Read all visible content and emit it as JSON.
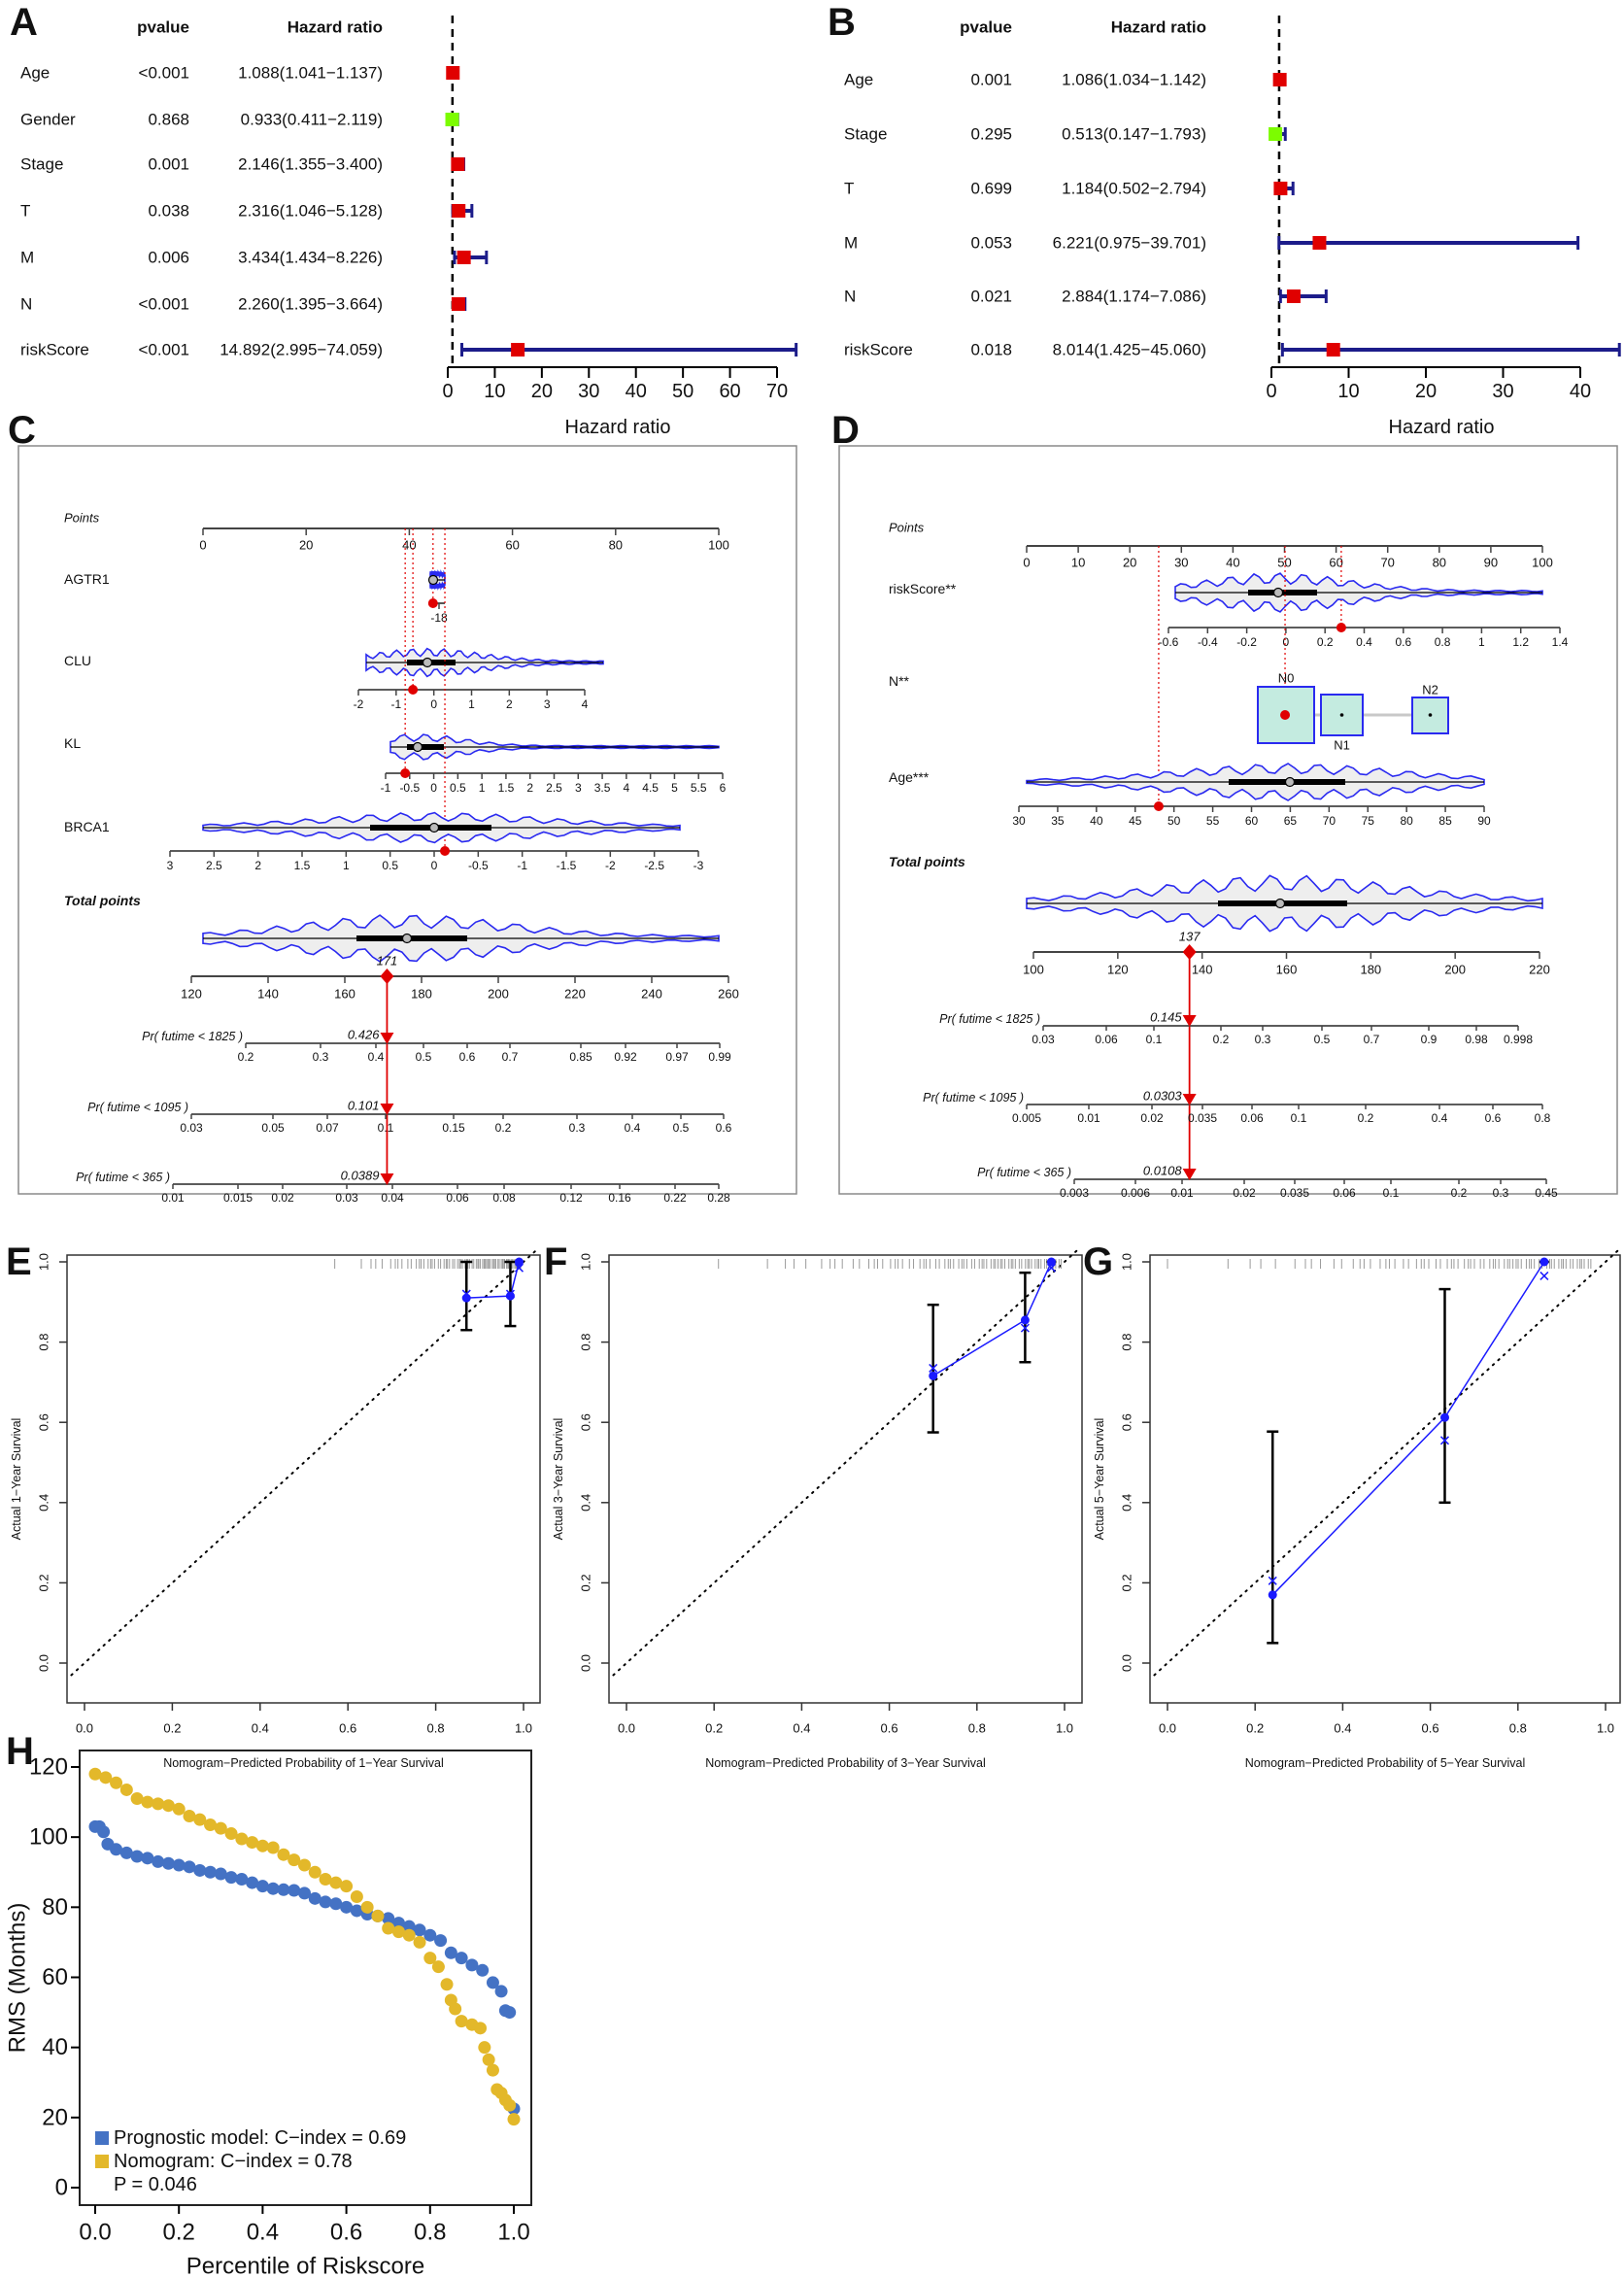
{
  "panels": [
    "A",
    "B",
    "C",
    "D",
    "E",
    "F",
    "G",
    "H"
  ],
  "chart_data": [
    {
      "type": "forest",
      "panel": "A",
      "headers": {
        "pvalue": "pvalue",
        "hazard_ratio": "Hazard ratio"
      },
      "xlabel": "Hazard ratio",
      "xticks": [
        0,
        10,
        20,
        30,
        40,
        50,
        60,
        70
      ],
      "xlim": [
        0,
        74
      ],
      "reference_line": 1,
      "rows": [
        {
          "label": "Age",
          "pvalue": "<0.001",
          "hr_text": "1.088(1.041−1.137)",
          "hr": 1.088,
          "lower": 1.041,
          "upper": 1.137,
          "color": "#e00000"
        },
        {
          "label": "Gender",
          "pvalue": "0.868",
          "hr_text": "0.933(0.411−2.119)",
          "hr": 0.933,
          "lower": 0.411,
          "upper": 2.119,
          "color": "#7cfc00"
        },
        {
          "label": "Stage",
          "pvalue": "0.001",
          "hr_text": "2.146(1.355−3.400)",
          "hr": 2.146,
          "lower": 1.355,
          "upper": 3.4,
          "color": "#e00000"
        },
        {
          "label": "T",
          "pvalue": "0.038",
          "hr_text": "2.316(1.046−5.128)",
          "hr": 2.316,
          "lower": 1.046,
          "upper": 5.128,
          "color": "#e00000"
        },
        {
          "label": "M",
          "pvalue": "0.006",
          "hr_text": "3.434(1.434−8.226)",
          "hr": 3.434,
          "lower": 1.434,
          "upper": 8.226,
          "color": "#e00000"
        },
        {
          "label": "N",
          "pvalue": "<0.001",
          "hr_text": "2.260(1.395−3.664)",
          "hr": 2.26,
          "lower": 1.395,
          "upper": 3.664,
          "color": "#e00000"
        },
        {
          "label": "riskScore",
          "pvalue": "<0.001",
          "hr_text": "14.892(2.995−74.059)",
          "hr": 14.892,
          "lower": 2.995,
          "upper": 74.059,
          "color": "#e00000"
        }
      ]
    },
    {
      "type": "forest",
      "panel": "B",
      "headers": {
        "pvalue": "pvalue",
        "hazard_ratio": "Hazard ratio"
      },
      "xlabel": "Hazard ratio",
      "xticks": [
        0,
        10,
        20,
        30,
        40
      ],
      "xlim": [
        0,
        45
      ],
      "reference_line": 1,
      "rows": [
        {
          "label": "Age",
          "pvalue": "0.001",
          "hr_text": "1.086(1.034−1.142)",
          "hr": 1.086,
          "lower": 1.034,
          "upper": 1.142,
          "color": "#e00000"
        },
        {
          "label": "Stage",
          "pvalue": "0.295",
          "hr_text": "0.513(0.147−1.793)",
          "hr": 0.513,
          "lower": 0.147,
          "upper": 1.793,
          "color": "#7cfc00"
        },
        {
          "label": "T",
          "pvalue": "0.699",
          "hr_text": "1.184(0.502−2.794)",
          "hr": 1.184,
          "lower": 0.502,
          "upper": 2.794,
          "color": "#e00000"
        },
        {
          "label": "M",
          "pvalue": "0.053",
          "hr_text": "6.221(0.975−39.701)",
          "hr": 6.221,
          "lower": 0.975,
          "upper": 39.701,
          "color": "#e00000"
        },
        {
          "label": "N",
          "pvalue": "0.021",
          "hr_text": "2.884(1.174−7.086)",
          "hr": 2.884,
          "lower": 1.174,
          "upper": 7.086,
          "color": "#e00000"
        },
        {
          "label": "riskScore",
          "pvalue": "0.018",
          "hr_text": "8.014(1.425−45.060)",
          "hr": 8.014,
          "lower": 1.425,
          "upper": 45.06,
          "color": "#e00000"
        }
      ]
    },
    {
      "type": "nomogram",
      "panel": "C",
      "points": {
        "label": "Points",
        "ticks": [
          0,
          20,
          40,
          60,
          80,
          100
        ]
      },
      "variables": [
        {
          "label": "AGTR1",
          "ticks": [
            "-18"
          ],
          "points": 44.6
        },
        {
          "label": "CLU",
          "ticks": [
            "-2",
            "-1",
            "0",
            "1",
            "2",
            "3",
            "4"
          ],
          "points": 40.7
        },
        {
          "label": "KL",
          "ticks": [
            "-1",
            "-0.5",
            "0",
            "0.5",
            "1",
            "1.5",
            "2",
            "2.5",
            "3",
            "3.5",
            "4",
            "4.5",
            "5",
            "5.5",
            "6"
          ],
          "points": 39.2
        },
        {
          "label": "BRCA1",
          "ticks": [
            "3",
            "2.5",
            "2",
            "1.5",
            "1",
            "0.5",
            "0",
            "-0.5",
            "-1",
            "-1.5",
            "-2",
            "-2.5",
            "-3"
          ],
          "points": 46.9
        }
      ],
      "total_points": {
        "label": "Total points",
        "ticks": [
          120,
          140,
          160,
          180,
          200,
          220,
          240,
          260
        ],
        "value": 171,
        "value_label": "171"
      },
      "probabilities": [
        {
          "label": "Pr( futime < 1825 )",
          "ticks": [
            "0.2",
            "0.3",
            "0.4",
            "0.5",
            "0.6",
            "0.7",
            "0.85",
            "0.92",
            "0.97",
            "0.99"
          ],
          "value": "0.426"
        },
        {
          "label": "Pr( futime < 1095 )",
          "ticks": [
            "0.03",
            "0.05",
            "0.07",
            "0.1",
            "0.15",
            "0.2",
            "0.3",
            "0.4",
            "0.5",
            "0.6"
          ],
          "value": "0.101"
        },
        {
          "label": "Pr( futime < 365 )",
          "ticks": [
            "0.01",
            "0.015",
            "0.02",
            "0.03",
            "0.04",
            "0.06",
            "0.08",
            "0.12",
            "0.16",
            "0.22",
            "0.28"
          ],
          "value": "0.0389"
        }
      ],
      "colors": {
        "highlight": "#e00000",
        "violin_outline": "#2a2af0"
      }
    },
    {
      "type": "nomogram",
      "panel": "D",
      "points": {
        "label": "Points",
        "ticks": [
          0,
          10,
          20,
          30,
          40,
          50,
          60,
          70,
          80,
          90,
          100
        ]
      },
      "variables": [
        {
          "label": "riskScore**",
          "ticks": [
            "-0.6",
            "-0.4",
            "-0.2",
            "0",
            "0.2",
            "0.4",
            "0.6",
            "0.8",
            "1",
            "1.2",
            "1.4"
          ],
          "points": 61
        },
        {
          "label": "N**",
          "categories": [
            "N0",
            "N1",
            "N2"
          ],
          "selected": "N0",
          "points": 50.1
        },
        {
          "label": "Age***",
          "ticks": [
            "30",
            "35",
            "40",
            "45",
            "50",
            "55",
            "60",
            "65",
            "70",
            "75",
            "80",
            "85",
            "90"
          ],
          "points": 25.6
        }
      ],
      "total_points": {
        "label": "Total points",
        "ticks": [
          100,
          120,
          140,
          160,
          180,
          200,
          220
        ],
        "value": 137,
        "value_label": "137"
      },
      "probabilities": [
        {
          "label": "Pr( futime < 1825 )",
          "ticks": [
            "0.03",
            "0.06",
            "0.1",
            "0.2",
            "0.3",
            "0.5",
            "0.7",
            "0.9",
            "0.98",
            "0.998"
          ],
          "value": "0.145"
        },
        {
          "label": "Pr( futime < 1095 )",
          "ticks": [
            "0.005",
            "0.01",
            "0.02",
            "0.035",
            "0.06",
            "0.1",
            "0.2",
            "0.4",
            "0.6",
            "0.8"
          ],
          "value": "0.0303"
        },
        {
          "label": "Pr( futime < 365 )",
          "ticks": [
            "0.003",
            "0.006",
            "0.01",
            "0.02",
            "0.035",
            "0.06",
            "0.1",
            "0.2",
            "0.3",
            "0.45"
          ],
          "value": "0.0108"
        }
      ],
      "colors": {
        "highlight": "#e00000",
        "violin_outline": "#2a2af0",
        "category_fill": "#c4ebe0"
      }
    },
    {
      "type": "scatter",
      "panel": "E",
      "xlabel": "Nomogram−Predicted Probability of 1−Year Survival",
      "ylabel": "Actual 1−Year Survival",
      "xticks": [
        "0.0",
        "0.2",
        "0.4",
        "0.6",
        "0.8",
        "1.0"
      ],
      "yticks": [
        "0.0",
        "0.2",
        "0.4",
        "0.6",
        "0.8",
        "1.0"
      ],
      "xlim": [
        0,
        1
      ],
      "ylim": [
        0,
        1
      ],
      "reference": "diagonal",
      "rug_range": [
        0.57,
        0.995
      ],
      "points": [
        {
          "predicted": 0.87,
          "observed": 0.91,
          "lower": 0.83,
          "upper": 1.0,
          "corrected": 0.92
        },
        {
          "predicted": 0.97,
          "observed": 0.915,
          "lower": 0.84,
          "upper": 1.0,
          "corrected": 0.92
        },
        {
          "predicted": 0.99,
          "observed": 1.0,
          "lower": 1.0,
          "upper": 1.0,
          "corrected": 0.985
        }
      ]
    },
    {
      "type": "scatter",
      "panel": "F",
      "xlabel": "Nomogram−Predicted Probability of 3−Year Survival",
      "ylabel": "Actual 3−Year Survival",
      "xticks": [
        "0.0",
        "0.2",
        "0.4",
        "0.6",
        "0.8",
        "1.0"
      ],
      "yticks": [
        "0.0",
        "0.2",
        "0.4",
        "0.6",
        "0.8",
        "1.0"
      ],
      "xlim": [
        0,
        1
      ],
      "ylim": [
        0,
        1
      ],
      "reference": "diagonal",
      "rug_range": [
        0.21,
        0.995
      ],
      "points": [
        {
          "predicted": 0.7,
          "observed": 0.716,
          "lower": 0.575,
          "upper": 0.893,
          "corrected": 0.735
        },
        {
          "predicted": 0.91,
          "observed": 0.855,
          "lower": 0.75,
          "upper": 0.973,
          "corrected": 0.835
        },
        {
          "predicted": 0.97,
          "observed": 1.0,
          "lower": 1.0,
          "upper": 1.0,
          "corrected": 0.985
        }
      ]
    },
    {
      "type": "scatter",
      "panel": "G",
      "xlabel": "Nomogram−Predicted Probability of 5−Year Survival",
      "ylabel": "Actual 5−Year Survival",
      "xticks": [
        "0.0",
        "0.2",
        "0.4",
        "0.6",
        "0.8",
        "1.0"
      ],
      "yticks": [
        "0.0",
        "0.2",
        "0.4",
        "0.6",
        "0.8",
        "1.0"
      ],
      "xlim": [
        0,
        1
      ],
      "ylim": [
        0,
        1
      ],
      "reference": "diagonal",
      "rug_range": [
        0.0,
        0.97
      ],
      "points": [
        {
          "predicted": 0.24,
          "observed": 0.17,
          "lower": 0.05,
          "upper": 0.577,
          "corrected": 0.205
        },
        {
          "predicted": 0.633,
          "observed": 0.612,
          "lower": 0.4,
          "upper": 0.932,
          "corrected": 0.555
        },
        {
          "predicted": 0.86,
          "observed": 1.0,
          "lower": 1.0,
          "upper": 1.0,
          "corrected": 0.965
        }
      ]
    },
    {
      "type": "scatter",
      "panel": "H",
      "xlabel": "Percentile of Riskscore",
      "ylabel": "RMS (Months)",
      "xticks": [
        "0.0",
        "0.2",
        "0.4",
        "0.6",
        "0.8",
        "1.0"
      ],
      "yticks": [
        0,
        20,
        40,
        60,
        80,
        100,
        120
      ],
      "xlim": [
        0,
        1
      ],
      "ylim": [
        0,
        120
      ],
      "legend": "bottom-left",
      "legend_note": "P = 0.046",
      "series": [
        {
          "name": "Prognostic model: C−index = 0.69",
          "color": "#4472c4",
          "x": [
            0,
            0.01,
            0.02,
            0.03,
            0.05,
            0.075,
            0.1,
            0.125,
            0.15,
            0.175,
            0.2,
            0.225,
            0.25,
            0.275,
            0.3,
            0.325,
            0.35,
            0.375,
            0.4,
            0.425,
            0.45,
            0.475,
            0.5,
            0.525,
            0.55,
            0.575,
            0.6,
            0.625,
            0.65,
            0.675,
            0.7,
            0.725,
            0.75,
            0.775,
            0.8,
            0.825,
            0.85,
            0.875,
            0.9,
            0.925,
            0.95,
            0.97,
            0.98,
            0.99,
            1.0
          ],
          "y": [
            103,
            103,
            101.5,
            98,
            96.5,
            95.5,
            94.5,
            94,
            93,
            92.5,
            92,
            91.5,
            90.5,
            90,
            89.5,
            88.5,
            88,
            87,
            86,
            85.3,
            85,
            84.8,
            84,
            82.5,
            81.5,
            81,
            80,
            79,
            78,
            77.5,
            76.8,
            75.5,
            74.5,
            73.5,
            72,
            70.5,
            67,
            65.5,
            63.5,
            62,
            58.5,
            56,
            50.5,
            50,
            22.5
          ]
        },
        {
          "name": "Nomogram: C−index = 0.78",
          "color": "#e3b82a",
          "x": [
            0,
            0.025,
            0.05,
            0.075,
            0.1,
            0.125,
            0.15,
            0.175,
            0.2,
            0.225,
            0.25,
            0.275,
            0.3,
            0.325,
            0.35,
            0.375,
            0.4,
            0.425,
            0.45,
            0.475,
            0.5,
            0.525,
            0.55,
            0.575,
            0.6,
            0.625,
            0.65,
            0.675,
            0.7,
            0.725,
            0.75,
            0.775,
            0.8,
            0.82,
            0.84,
            0.85,
            0.86,
            0.875,
            0.9,
            0.92,
            0.93,
            0.94,
            0.95,
            0.96,
            0.97,
            0.98,
            0.99,
            1.0
          ],
          "y": [
            118,
            117,
            115.5,
            113.5,
            111,
            110,
            109.5,
            109,
            108,
            106,
            105,
            103.5,
            102.5,
            101,
            99.5,
            98.5,
            97.5,
            97,
            95,
            93.5,
            92,
            90,
            88,
            87,
            86,
            83,
            80,
            77.5,
            74,
            73,
            72,
            70,
            65.5,
            63,
            58,
            53.5,
            51,
            47.5,
            46.5,
            45.5,
            40,
            36.5,
            33.5,
            28,
            27,
            25,
            23.5,
            19.5
          ]
        }
      ]
    }
  ]
}
